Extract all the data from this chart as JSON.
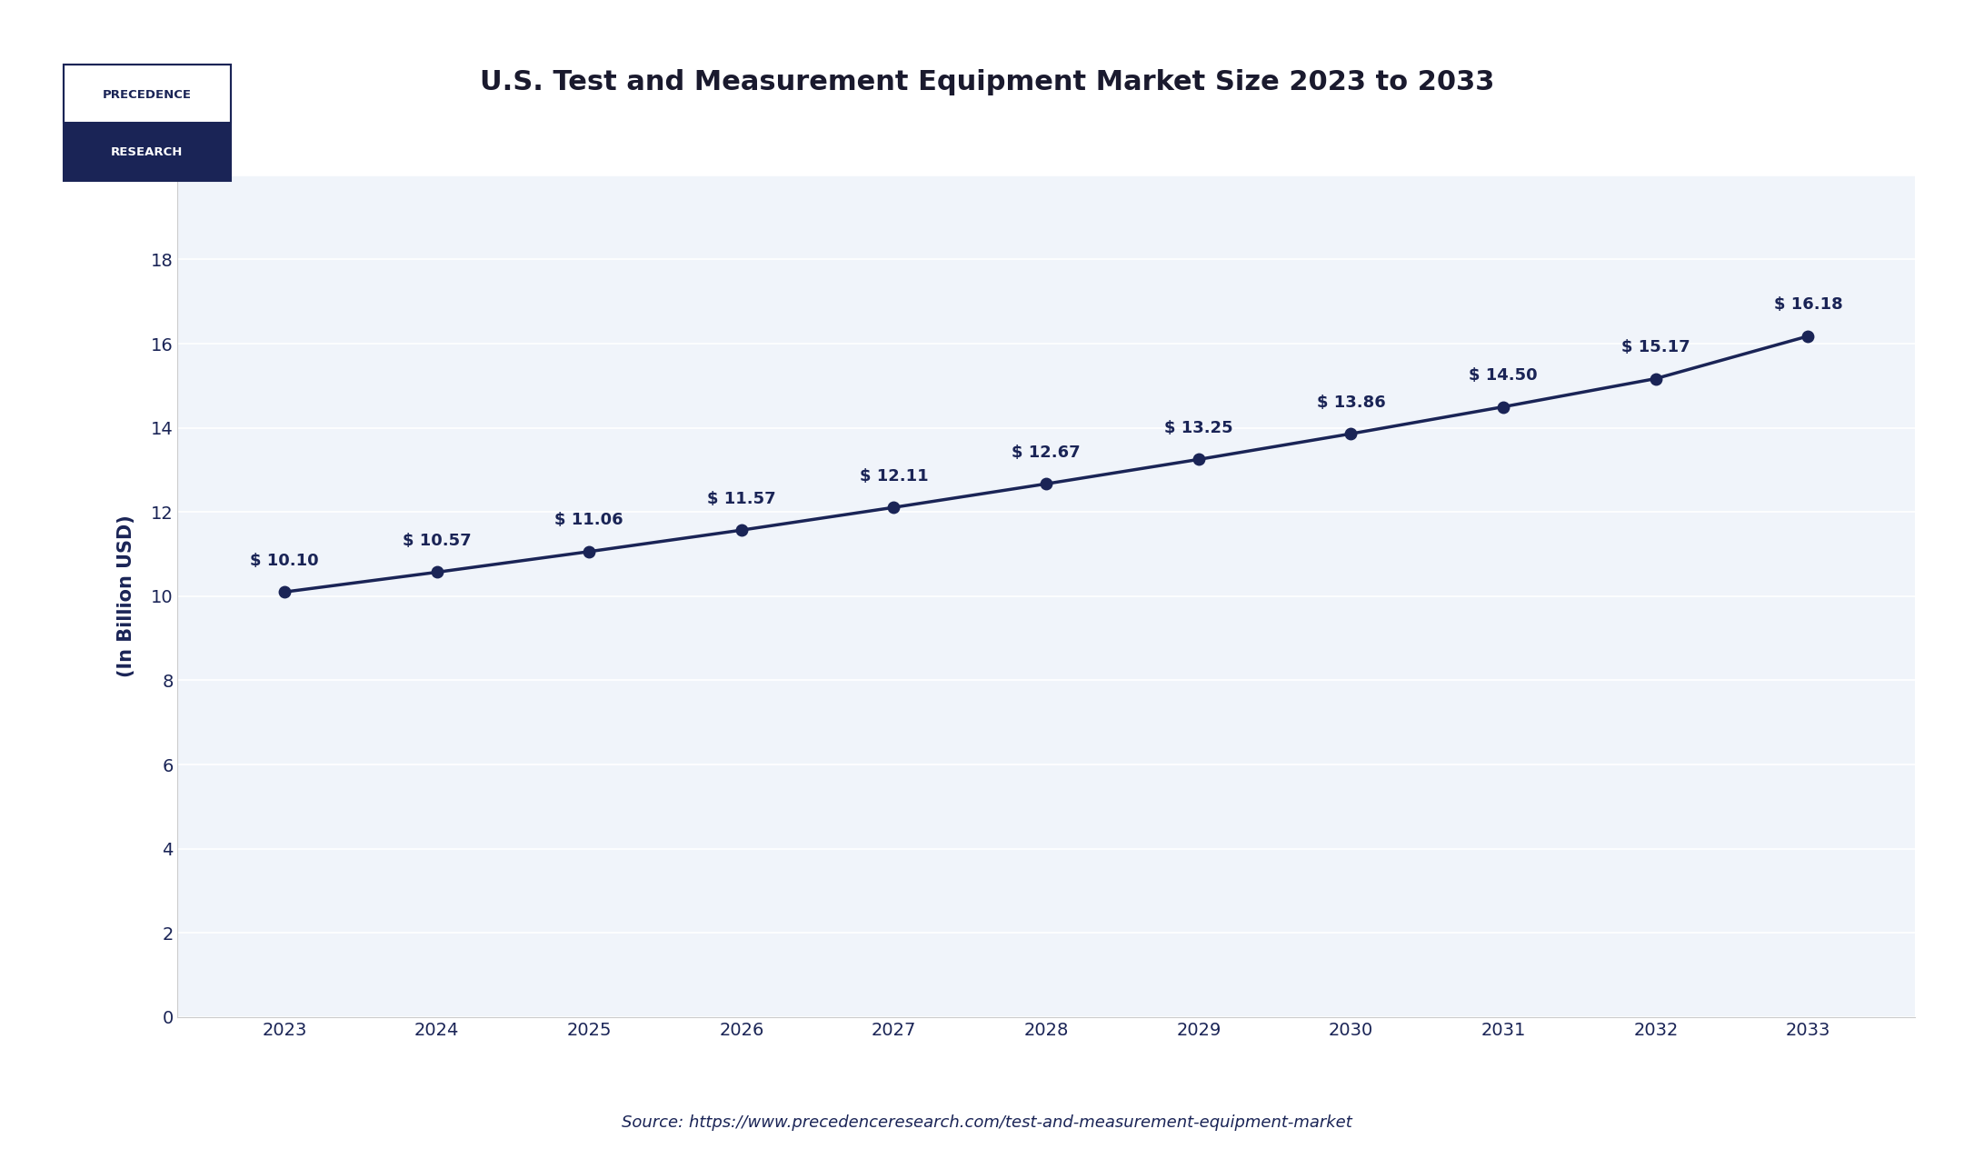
{
  "title": "U.S. Test and Measurement Equipment Market Size 2023 to 2033",
  "xlabel": "",
  "ylabel": "(In Billion USD)",
  "years": [
    2023,
    2024,
    2025,
    2026,
    2027,
    2028,
    2029,
    2030,
    2031,
    2032,
    2033
  ],
  "values": [
    10.1,
    10.57,
    11.06,
    11.57,
    12.11,
    12.67,
    13.25,
    13.86,
    14.5,
    15.17,
    16.18
  ],
  "labels": [
    "$ 10.10",
    "$ 10.57",
    "$ 11.06",
    "$ 11.57",
    "$ 12.11",
    "$ 12.67",
    "$ 13.25",
    "$ 13.86",
    "$ 14.50",
    "$ 15.17",
    "$ 16.18"
  ],
  "line_color": "#1a2456",
  "marker_color": "#1a2456",
  "background_color": "#ffffff",
  "plot_bg_color": "#f0f4fa",
  "grid_color": "#ffffff",
  "title_color": "#1a1a2e",
  "label_color": "#1a2456",
  "axis_color": "#1a2456",
  "tick_color": "#1a2456",
  "ylim": [
    0,
    20
  ],
  "yticks": [
    0,
    2,
    4,
    6,
    8,
    10,
    12,
    14,
    16,
    18,
    20
  ],
  "title_fontsize": 22,
  "ylabel_fontsize": 15,
  "label_fontsize": 13,
  "tick_fontsize": 14,
  "source_text": "Source: https://www.precedenceresearch.com/test-and-measurement-equipment-market",
  "source_fontsize": 13,
  "logo_top_text": "PRECEDENCE",
  "logo_bottom_text": "RESEARCH",
  "logo_top_bg": "#ffffff",
  "logo_bottom_bg": "#1a2456",
  "logo_top_color": "#1a2456",
  "logo_bottom_color": "#ffffff"
}
